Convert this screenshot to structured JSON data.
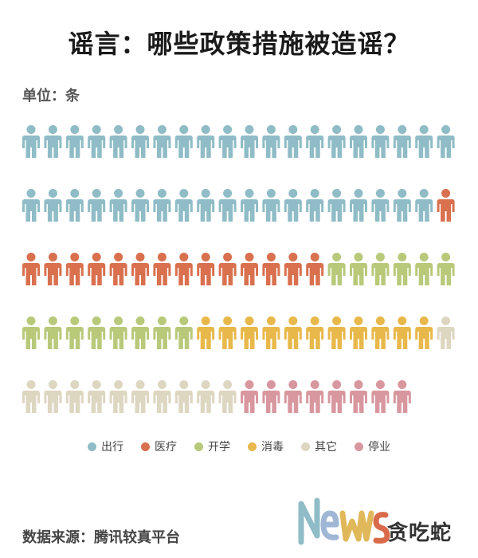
{
  "title": "谣言：哪些政策措施被造谣？",
  "unit_label": "单位：条",
  "source": "数据来源：腾讯较真平台",
  "logo": {
    "latin": "News",
    "chinese": "贪吃蛇",
    "colors": [
      "#8fbcc6",
      "#9fb7d4",
      "#e0b85a",
      "#d96b4a"
    ]
  },
  "chart_data": {
    "type": "pictogram",
    "title": "谣言：哪些政策措施被造谣？",
    "unit": "条",
    "per_row": 20,
    "series": [
      {
        "name": "出行",
        "value": 39,
        "color": "#8fbcc6"
      },
      {
        "name": "医疗",
        "value": 15,
        "color": "#d9704e"
      },
      {
        "name": "开学",
        "value": 14,
        "color": "#b8c97a"
      },
      {
        "name": "消毒",
        "value": 11,
        "color": "#e8b84a"
      },
      {
        "name": "其它",
        "value": 11,
        "color": "#ddd6c0"
      },
      {
        "name": "停业",
        "value": 8,
        "color": "#d8979f"
      }
    ]
  }
}
